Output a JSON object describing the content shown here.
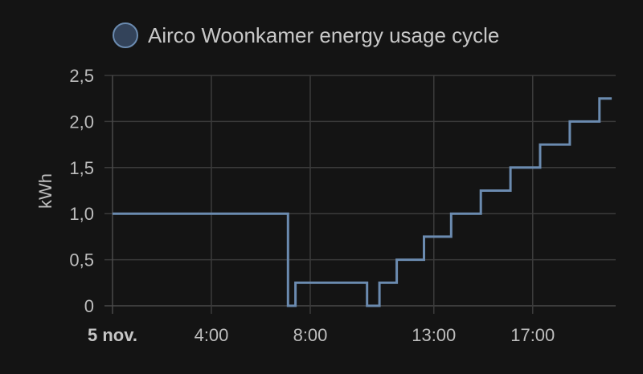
{
  "chart_data": {
    "type": "line",
    "step": true,
    "title": "",
    "xlabel": "",
    "ylabel": "kWh",
    "ylim": [
      0,
      2.5
    ],
    "yticks": [
      "0",
      "0,5",
      "1,0",
      "1,5",
      "2,0",
      "2,5"
    ],
    "ytick_values": [
      0,
      0.5,
      1.0,
      1.5,
      2.0,
      2.5
    ],
    "xlim": [
      0,
      20.2
    ],
    "xticks": [
      {
        "x": 0,
        "label": "5 nov.",
        "bold": true
      },
      {
        "x": 4,
        "label": "4:00",
        "bold": false
      },
      {
        "x": 8,
        "label": "8:00",
        "bold": false
      },
      {
        "x": 13,
        "label": "13:00",
        "bold": false
      },
      {
        "x": 17,
        "label": "17:00",
        "bold": false
      }
    ],
    "grid": true,
    "legend_position": "top",
    "series": [
      {
        "name": "Airco Woonkamer energy usage cycle",
        "color": "#6b8bb0",
        "x": [
          0,
          7.1,
          7.1,
          7.4,
          7.4,
          10.3,
          10.3,
          10.8,
          10.8,
          11.5,
          11.5,
          12.6,
          12.6,
          13.7,
          13.7,
          14.9,
          14.9,
          16.1,
          16.1,
          17.3,
          17.3,
          18.5,
          18.5,
          19.7,
          19.7,
          20.2
        ],
        "y": [
          1.0,
          1.0,
          0,
          0,
          0.25,
          0.25,
          0,
          0,
          0.25,
          0.25,
          0.5,
          0.5,
          0.75,
          0.75,
          1.0,
          1.0,
          1.25,
          1.25,
          1.5,
          1.5,
          1.75,
          1.75,
          2.0,
          2.0,
          2.25,
          2.25
        ]
      }
    ]
  }
}
